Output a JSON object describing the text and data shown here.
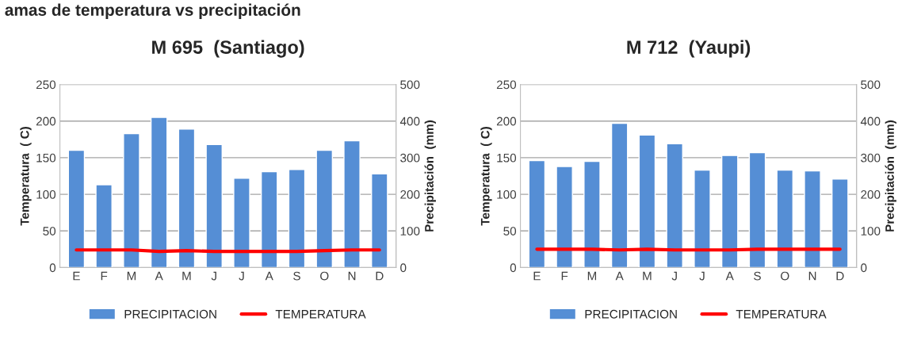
{
  "chart_data": [
    {
      "type": "bar",
      "title": "M 695  (Santiago)",
      "ylabel": "Temperatura  ( C)",
      "y2label": "Precipitación  (mm)",
      "annotations": [
        "amas de temperatura vs precipitación"
      ],
      "categories": [
        "E",
        "F",
        "M",
        "A",
        "M",
        "J",
        "J",
        "A",
        "S",
        "O",
        "N",
        "D"
      ],
      "series": [
        {
          "name": "PRECIPITACION",
          "axis": "y2",
          "color": "#558ed5",
          "values": [
            320,
            226,
            366,
            410,
            378,
            336,
            244,
            262,
            268,
            320,
            346,
            256
          ]
        },
        {
          "name": "TEMPERATURA",
          "type": "line",
          "color": "#ff0000",
          "values": [
            24,
            24,
            24,
            22,
            23,
            22,
            22,
            22,
            22,
            23,
            24,
            24
          ]
        }
      ],
      "ylim": [
        0,
        250
      ],
      "yticks": [
        0,
        50,
        100,
        150,
        200,
        250
      ],
      "y2lim": [
        0,
        500
      ],
      "y2ticks": [
        0,
        100,
        200,
        300,
        400,
        500
      ],
      "grid": "y",
      "legend": "bottom"
    },
    {
      "type": "bar",
      "title": "M 712  (Yaupi)",
      "ylabel": "Temperatura  ( C)",
      "y2label": "Precipitación  (mm)",
      "categories": [
        "E",
        "F",
        "M",
        "A",
        "M",
        "J",
        "J",
        "A",
        "S",
        "O",
        "N",
        "D"
      ],
      "series": [
        {
          "name": "PRECIPITACION",
          "axis": "y2",
          "color": "#558ed5",
          "values": [
            292,
            276,
            290,
            394,
            362,
            338,
            266,
            306,
            314,
            266,
            264,
            242
          ]
        },
        {
          "name": "TEMPERATURA",
          "type": "line",
          "color": "#ff0000",
          "values": [
            25,
            25,
            25,
            24,
            25,
            24,
            24,
            24,
            25,
            25,
            25,
            25
          ]
        }
      ],
      "ylim": [
        0,
        250
      ],
      "yticks": [
        0,
        50,
        100,
        150,
        200,
        250
      ],
      "y2lim": [
        0,
        500
      ],
      "y2ticks": [
        0,
        100,
        200,
        300,
        400,
        500
      ],
      "grid": "y",
      "legend": "bottom"
    }
  ]
}
